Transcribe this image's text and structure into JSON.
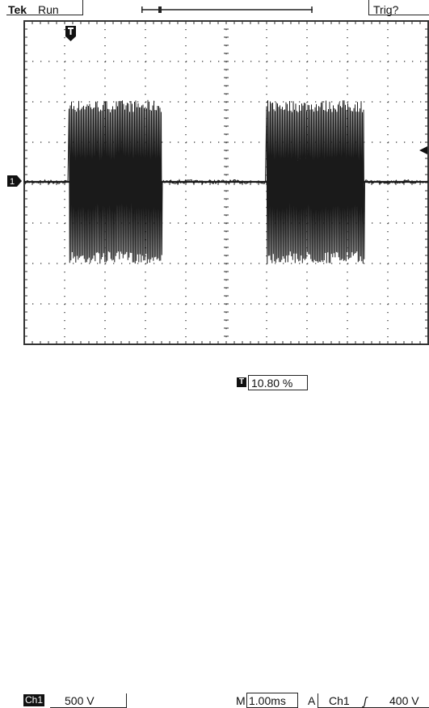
{
  "header": {
    "brand": "Tek",
    "run_state": "Run",
    "trigger_status": "Trig?",
    "trigger_position_marker": "û"
  },
  "markers": {
    "trigger_position_icon": "trigger-position-marker-icon",
    "ch1_ground_label": "1",
    "trigger_level_icon": "trigger-level-arrow-icon"
  },
  "status_bar": {
    "channel_label": "Ch1",
    "channel_scale": "500 V",
    "timebase_prefix": "M",
    "timebase_value": "1.00ms",
    "trigger_mode": "A",
    "trigger_source": "Ch1",
    "trigger_slope_glyph": "ʃ",
    "trigger_level": "400 V"
  },
  "trigger_position": {
    "icon_glyph": "T",
    "value": "10.80 %"
  },
  "waveform": {
    "bursts_divisions": [
      [
        1.1,
        3.4
      ],
      [
        6.0,
        8.4
      ]
    ],
    "burst_amplitude_divisions": 3.0,
    "noise_amplitude_divisions": 0.1
  },
  "colors": {
    "trace": "#1a1a1a",
    "graticule": "#333333",
    "background": "#ffffff"
  }
}
